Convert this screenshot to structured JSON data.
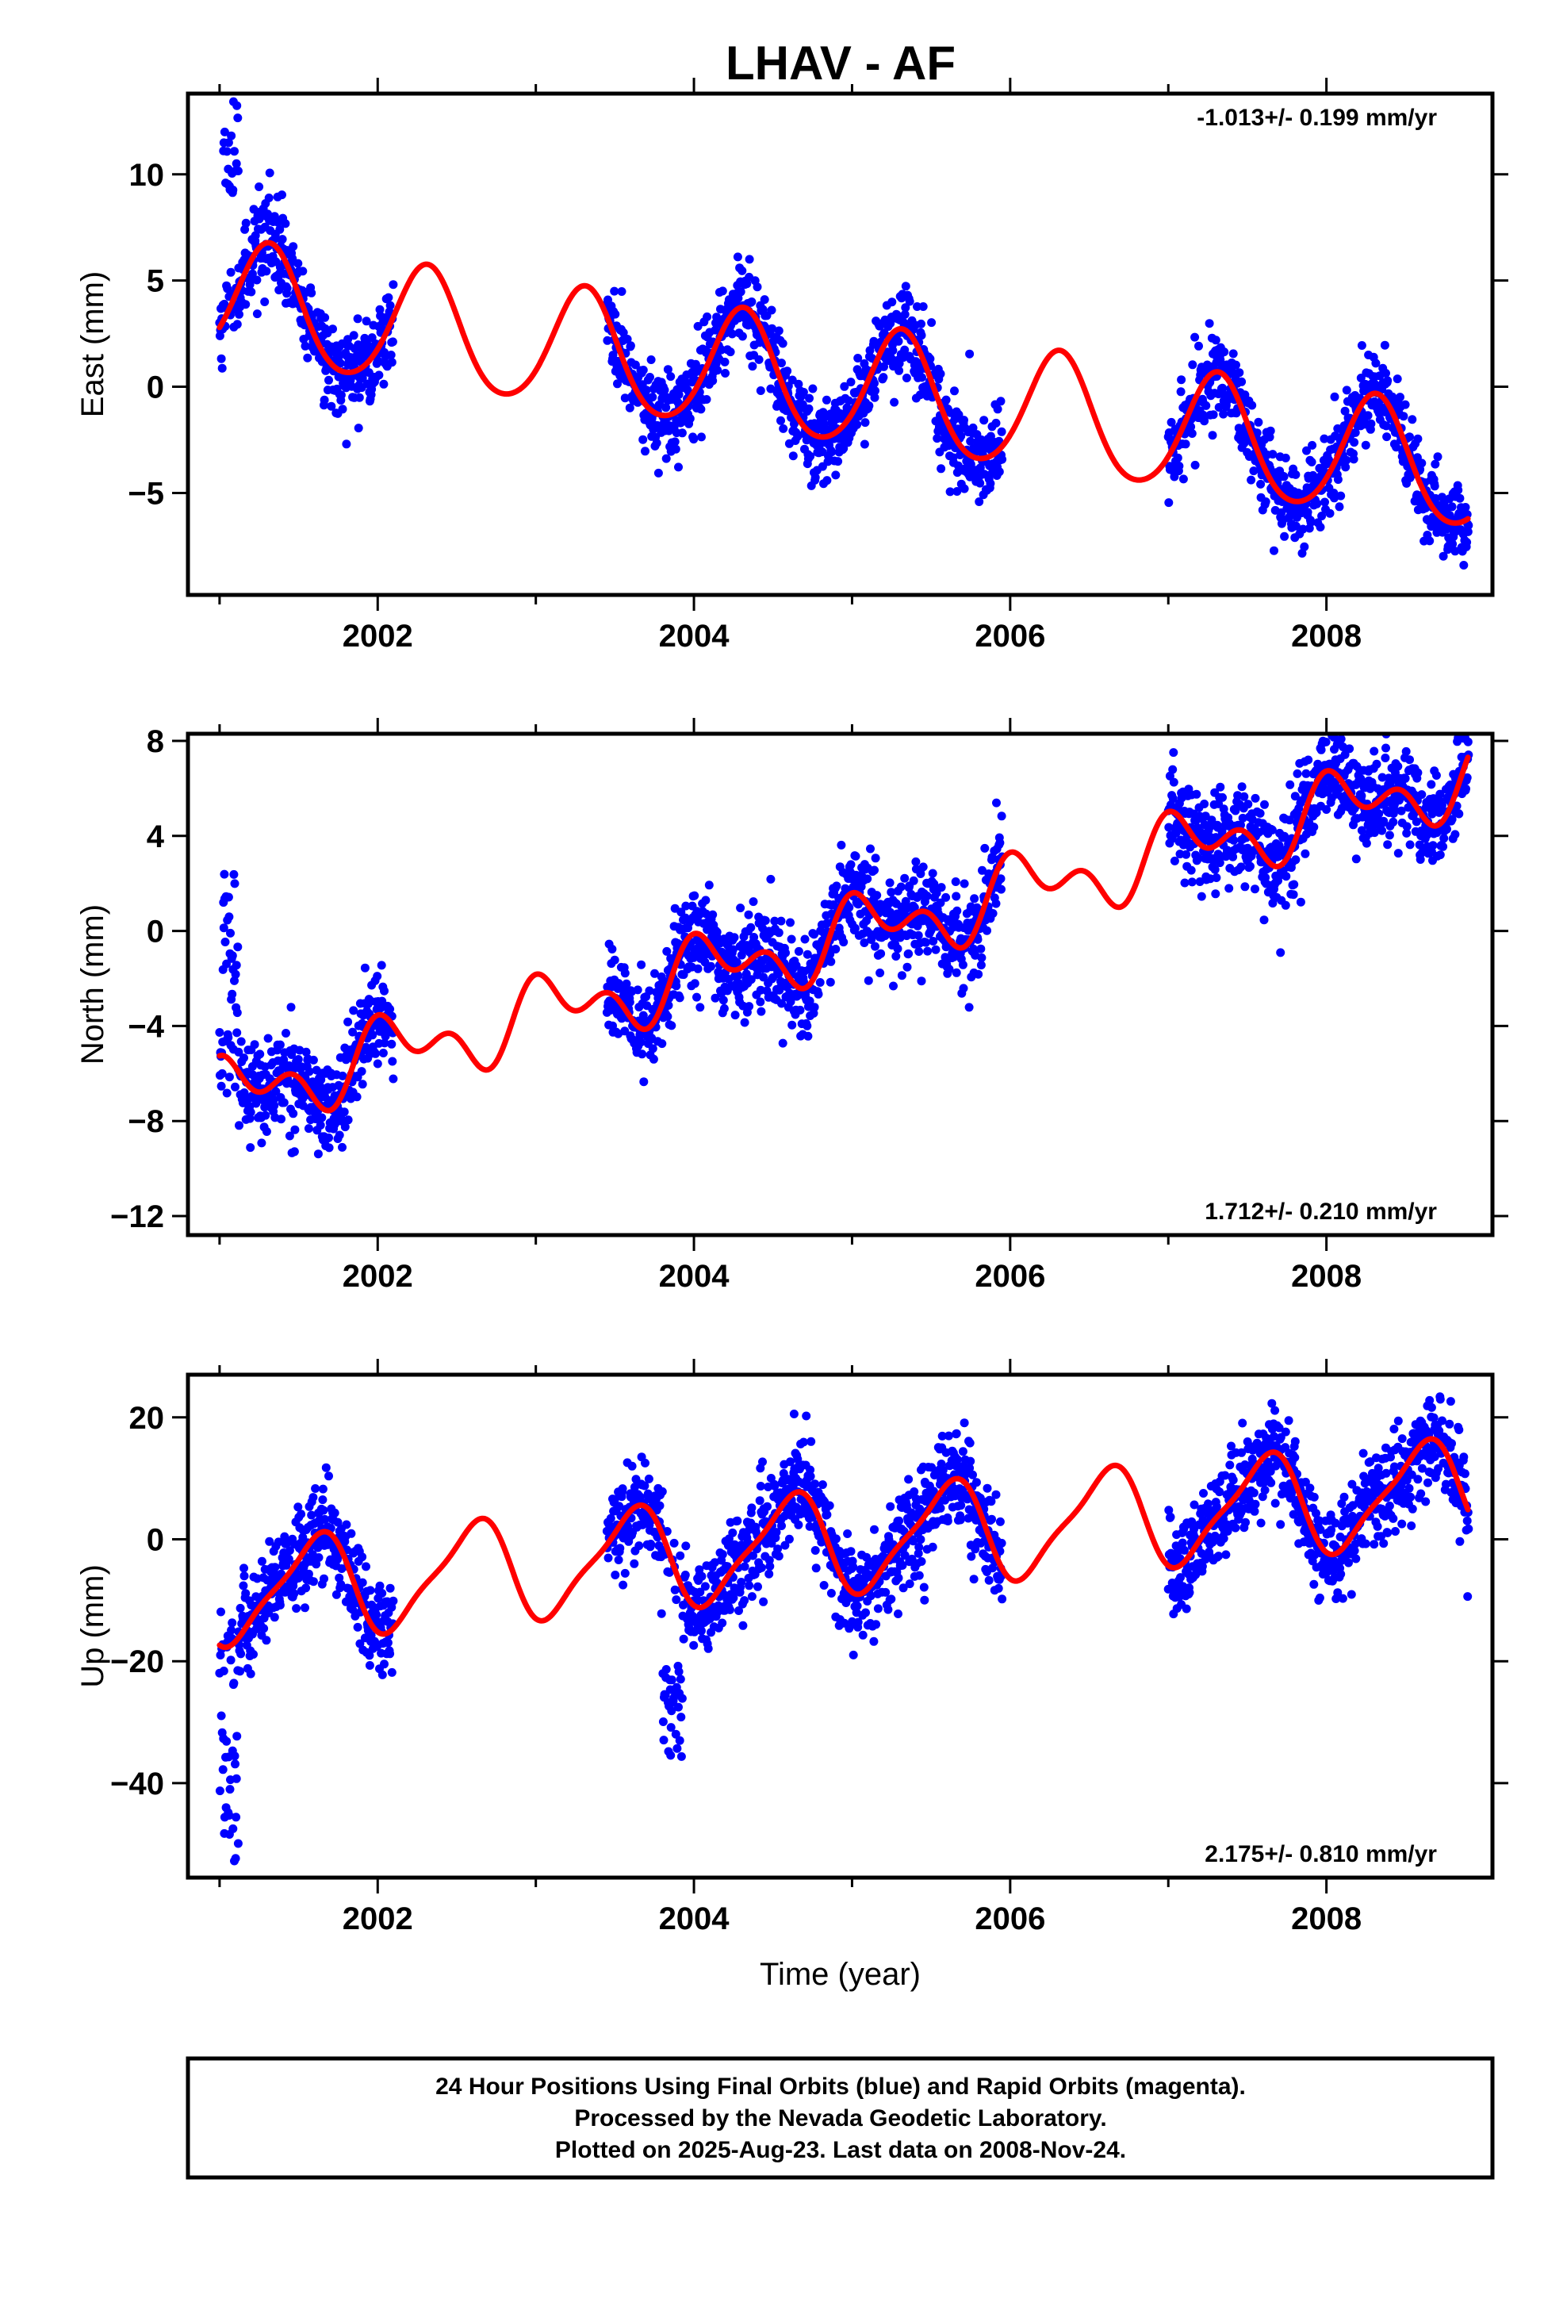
{
  "title": "LHAV - AF",
  "colors": {
    "points": "#0000ff",
    "fit": "#ff0000",
    "axes": "#000000"
  },
  "footer": {
    "line1": "24 Hour Positions Using Final Orbits (blue) and Rapid Orbits (magenta).",
    "line2": "Processed by the Nevada Geodetic Laboratory.",
    "line3": "Plotted on 2025-Aug-23. Last data on 2008-Nov-24."
  },
  "chart_data": [
    {
      "type": "scatter",
      "panel": "east",
      "ylabel": "East (mm)",
      "xlabel": "",
      "rate_text": "-1.013+/- 0.199 mm/yr",
      "rate_position": "top-right",
      "xlim": [
        2000.8,
        2009.05
      ],
      "ylim": [
        -9.8,
        13.8
      ],
      "xticks": [
        2002,
        2004,
        2006,
        2008
      ],
      "yticks": [
        -5,
        0,
        5,
        10
      ],
      "ytick_labels": [
        "−5",
        "0",
        "5",
        "10"
      ],
      "grid": false,
      "model": {
        "offset": 4.0,
        "t0": 2001.0,
        "rate": -1.013,
        "amp_annual": 2.8,
        "phase_annual": 0.06,
        "amp_semi": 0.3,
        "phase_semi": 0.2
      },
      "data_segments": [
        [
          2001.0,
          2002.1
        ],
        [
          2003.45,
          2005.95
        ],
        [
          2007.0,
          2008.9
        ]
      ],
      "noise": 1.0,
      "anomalies": [
        {
          "x": [
            2001.02,
            2001.12
          ],
          "y": [
            9.0,
            13.5
          ]
        }
      ],
      "series": [
        {
          "name": "Final Orbits",
          "style": "points"
        },
        {
          "name": "fit",
          "style": "line"
        }
      ]
    },
    {
      "type": "scatter",
      "panel": "north",
      "ylabel": "North (mm)",
      "xlabel": "",
      "rate_text": "1.712+/- 0.210 mm/yr",
      "rate_position": "bottom-right",
      "xlim": [
        2000.8,
        2009.05
      ],
      "ylim": [
        -12.8,
        8.3
      ],
      "xticks": [
        2002,
        2004,
        2006,
        2008
      ],
      "yticks": [
        -12,
        -8,
        -4,
        0,
        4,
        8
      ],
      "ytick_labels": [
        "−12",
        "−8",
        "−4",
        "0",
        "4",
        "8"
      ],
      "grid": false,
      "model": {
        "offset": -7.0,
        "t0": 2001.0,
        "rate": 1.712,
        "amp_annual": 1.1,
        "phase_annual": 0.85,
        "amp_semi": 0.9,
        "phase_semi": 0.35
      },
      "data_segments": [
        [
          2001.0,
          2002.1
        ],
        [
          2003.45,
          2005.95
        ],
        [
          2007.0,
          2008.9
        ]
      ],
      "noise": 1.0,
      "anomalies": [
        {
          "x": [
            2001.02,
            2001.12
          ],
          "y": [
            -3.5,
            2.4
          ]
        }
      ],
      "series": [
        {
          "name": "Final Orbits",
          "style": "points"
        },
        {
          "name": "fit",
          "style": "line"
        }
      ]
    },
    {
      "type": "scatter",
      "panel": "up",
      "ylabel": "Up (mm)",
      "xlabel": "Time (year)",
      "rate_text": "2.175+/- 0.810 mm/yr",
      "rate_position": "bottom-right",
      "xlim": [
        2000.8,
        2009.05
      ],
      "ylim": [
        -55.5,
        27
      ],
      "xticks": [
        2002,
        2004,
        2006,
        2008
      ],
      "yticks": [
        -40,
        -20,
        0,
        20
      ],
      "ytick_labels": [
        "−40",
        "−20",
        "0",
        "20"
      ],
      "grid": false,
      "model": {
        "offset": -9.0,
        "t0": 2001.0,
        "rate": 2.175,
        "amp_annual": 8.0,
        "phase_annual": 0.35,
        "amp_semi": 2.0,
        "phase_semi": 0.1
      },
      "data_segments": [
        [
          2001.0,
          2002.1
        ],
        [
          2003.45,
          2005.95
        ],
        [
          2007.0,
          2008.9
        ]
      ],
      "noise": 4.0,
      "anomalies": [
        {
          "x": [
            2001.0,
            2001.12
          ],
          "y": [
            -54,
            -28
          ]
        },
        {
          "x": [
            2003.8,
            2003.95
          ],
          "y": [
            -36,
            -20
          ]
        }
      ],
      "series": [
        {
          "name": "Final Orbits",
          "style": "points"
        },
        {
          "name": "fit",
          "style": "line"
        }
      ]
    }
  ]
}
